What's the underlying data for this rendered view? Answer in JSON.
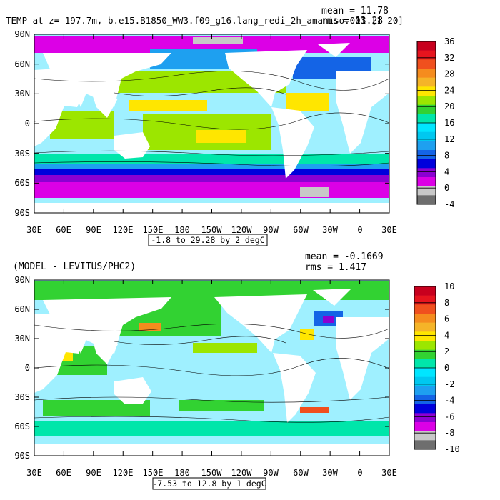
{
  "colors": {
    "land": "#ffffff",
    "ocean_fill": "#9ff0ff",
    "frame": "#000000",
    "contour_line": "#000000"
  },
  "panels": [
    {
      "id": "top",
      "title": "TEMP at z= 197.7m, b.e15.B1850_WW3.f09_g16.lang_redi_2h_amaniso.001 [1-20]",
      "stats": [
        "mean = 11.78",
        "rms = 13.28"
      ],
      "range_label": "-1.8 to 29.28 by 2 degC",
      "colorbar": {
        "labels": [
          "36",
          "32",
          "28",
          "24",
          "20",
          "16",
          "12",
          "8",
          "4",
          "0",
          "-4"
        ],
        "colors": [
          "#c8001e",
          "#e6141e",
          "#f0501e",
          "#f58c1e",
          "#f5b428",
          "#ffe600",
          "#9ce600",
          "#32d232",
          "#00e6aa",
          "#00e6ff",
          "#00c8f0",
          "#1ea0f0",
          "#1464e6",
          "#0000dc",
          "#8c00d2",
          "#dc00e6",
          "#c8c8c8",
          "#6e6e6e"
        ]
      }
    },
    {
      "id": "bottom",
      "title": "(MODEL - LEVITUS/PHC2)",
      "stats": [
        "mean = -0.1669",
        "rms = 1.417"
      ],
      "range_label": "-7.53 to 12.8 by 1 degC",
      "colorbar": {
        "labels": [
          "10",
          "8",
          "6",
          "4",
          "2",
          "0",
          "-2",
          "-4",
          "-6",
          "-8",
          "-10"
        ],
        "colors": [
          "#c8001e",
          "#e6141e",
          "#f0501e",
          "#f58c1e",
          "#f5b428",
          "#ffe600",
          "#9ce600",
          "#32d232",
          "#00e6aa",
          "#00e6ff",
          "#00c8f0",
          "#1ea0f0",
          "#1464e6",
          "#0000dc",
          "#8c00d2",
          "#dc00e6",
          "#c8c8c8",
          "#6e6e6e"
        ]
      }
    }
  ],
  "axes": {
    "lat_labels": [
      "90N",
      "60N",
      "30N",
      "0",
      "30S",
      "60S",
      "90S"
    ],
    "lon_labels": [
      "30E",
      "60E",
      "90E",
      "120E",
      "150E",
      "180",
      "150W",
      "120W",
      "90W",
      "60W",
      "30W",
      "0",
      "30E"
    ]
  }
}
